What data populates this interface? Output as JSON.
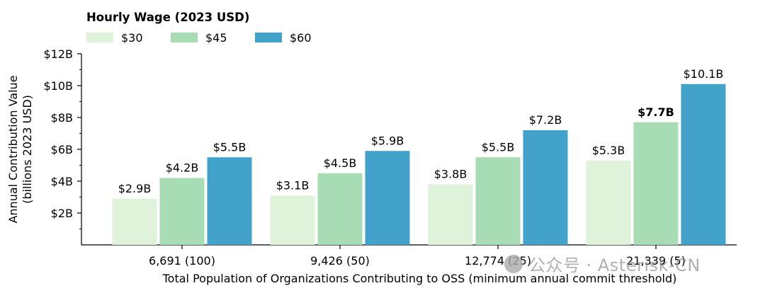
{
  "chart_data": {
    "type": "bar",
    "title": "",
    "legend_title": "Hourly Wage (2023 USD)",
    "legend_placement": "top-left",
    "xlabel": "Total Population of Organizations Contributing to OSS (minimum annual commit threshold)",
    "ylabel_lines": [
      "Annual Contribution Value",
      "(billions 2023 USD)"
    ],
    "ylim": [
      0,
      12
    ],
    "yticks": [
      2,
      4,
      6,
      8,
      10,
      12
    ],
    "ytick_labels": [
      "$2B",
      "$4B",
      "$6B",
      "$8B",
      "$10B",
      "$12B"
    ],
    "categories": [
      "6,691 (100)",
      "9,426 (50)",
      "12,774 (25)",
      "21,339 (5)"
    ],
    "series": [
      {
        "name": "$30",
        "color": "#dff2da",
        "values": [
          2.9,
          3.1,
          3.8,
          5.3
        ],
        "labels": [
          "$2.9B",
          "$3.1B",
          "$3.8B",
          "$5.3B"
        ]
      },
      {
        "name": "$45",
        "color": "#a8dcb4",
        "values": [
          4.2,
          4.5,
          5.5,
          7.7
        ],
        "labels": [
          "$4.2B",
          "$4.5B",
          "$5.5B",
          "$7.7B"
        ]
      },
      {
        "name": "$60",
        "color": "#43a2ca",
        "values": [
          5.5,
          5.9,
          7.2,
          10.1
        ],
        "labels": [
          "$5.5B",
          "$5.9B",
          "$7.2B",
          "$10.1B"
        ]
      }
    ],
    "bold_label": {
      "series": 1,
      "category": 3
    }
  },
  "watermark": "公众号 · Asterisk-CN"
}
